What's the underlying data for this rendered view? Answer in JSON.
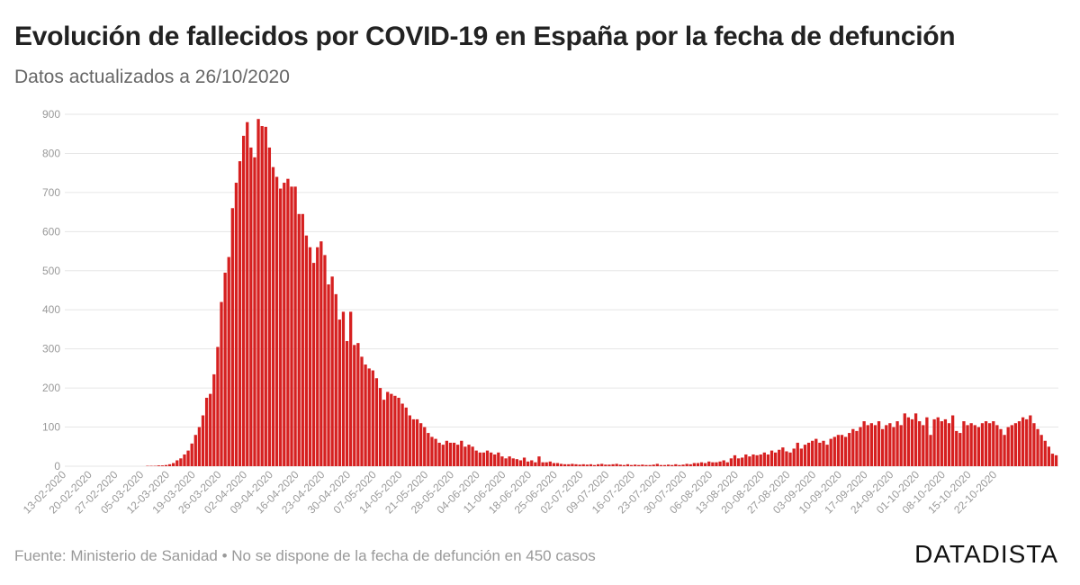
{
  "header": {
    "title": "Evolución de fallecidos por COVID-19 en España por la fecha de defunción",
    "subtitle": "Datos actualizados a 26/10/2020"
  },
  "footer": {
    "source": "Fuente: Ministerio de Sanidad • No se dispone de la fecha de defunción en 450 casos",
    "brand": "DATADISTA"
  },
  "colors": {
    "bar": "#d62020",
    "grid": "#e6e6e6",
    "tick": "#999999"
  },
  "chart_data": {
    "type": "bar",
    "title": "Evolución de fallecidos por COVID-19 en España por la fecha de defunción",
    "subtitle": "Datos actualizados a 26/10/2020",
    "xlabel": "",
    "ylabel": "",
    "ylim": [
      0,
      900
    ],
    "yticks": [
      0,
      100,
      200,
      300,
      400,
      500,
      600,
      700,
      800,
      900
    ],
    "grid": true,
    "start_date": "13-02-2020",
    "end_date": "25-10-2020",
    "xtick_labels": [
      "13-02-2020",
      "20-02-2020",
      "27-02-2020",
      "05-03-2020",
      "12-03-2020",
      "19-03-2020",
      "26-03-2020",
      "02-04-2020",
      "09-04-2020",
      "16-04-2020",
      "23-04-2020",
      "30-04-2020",
      "07-05-2020",
      "14-05-2020",
      "21-05-2020",
      "28-05-2020",
      "04-06-2020",
      "11-06-2020",
      "18-06-2020",
      "25-06-2020",
      "02-07-2020",
      "09-07-2020",
      "16-07-2020",
      "23-07-2020",
      "30-07-2020",
      "06-08-2020",
      "13-08-2020",
      "20-08-2020",
      "27-08-2020",
      "03-09-2020",
      "10-09-2020",
      "17-09-2020",
      "24-09-2020",
      "01-10-2020",
      "08-10-2020",
      "15-10-2020",
      "22-10-2020"
    ],
    "series": [
      {
        "name": "Fallecidos",
        "values": [
          0,
          0,
          0,
          0,
          0,
          0,
          0,
          0,
          0,
          0,
          0,
          0,
          0,
          0,
          0,
          0,
          0,
          0,
          0,
          0,
          0,
          0,
          1,
          1,
          1,
          2,
          2,
          3,
          5,
          8,
          15,
          20,
          30,
          40,
          58,
          80,
          100,
          130,
          175,
          185,
          235,
          305,
          420,
          495,
          535,
          660,
          725,
          780,
          845,
          880,
          815,
          790,
          888,
          870,
          868,
          815,
          765,
          740,
          710,
          725,
          735,
          715,
          715,
          645,
          645,
          590,
          560,
          520,
          560,
          575,
          540,
          465,
          485,
          440,
          375,
          395,
          320,
          395,
          310,
          315,
          280,
          260,
          250,
          245,
          225,
          200,
          170,
          190,
          185,
          180,
          175,
          160,
          150,
          130,
          120,
          120,
          110,
          100,
          85,
          75,
          70,
          60,
          55,
          65,
          60,
          60,
          55,
          65,
          50,
          55,
          50,
          40,
          35,
          35,
          40,
          35,
          30,
          35,
          25,
          20,
          25,
          20,
          18,
          15,
          22,
          12,
          15,
          10,
          25,
          10,
          10,
          12,
          8,
          8,
          6,
          5,
          5,
          6,
          5,
          4,
          5,
          4,
          5,
          3,
          5,
          6,
          4,
          4,
          5,
          6,
          4,
          3,
          5,
          3,
          4,
          3,
          4,
          3,
          3,
          4,
          6,
          3,
          3,
          4,
          3,
          5,
          3,
          4,
          6,
          5,
          8,
          8,
          10,
          8,
          12,
          10,
          10,
          12,
          15,
          10,
          20,
          28,
          20,
          22,
          30,
          25,
          30,
          28,
          30,
          35,
          30,
          40,
          35,
          42,
          48,
          38,
          35,
          45,
          60,
          45,
          55,
          60,
          65,
          70,
          60,
          65,
          55,
          70,
          75,
          80,
          80,
          75,
          85,
          95,
          90,
          100,
          115,
          105,
          110,
          105,
          115,
          95,
          105,
          110,
          100,
          115,
          105,
          135,
          125,
          120,
          135,
          115,
          105,
          125,
          80,
          120,
          125,
          115,
          120,
          110,
          130,
          90,
          85,
          115,
          105,
          110,
          105,
          100,
          110,
          115,
          110,
          115,
          105,
          95,
          80,
          100,
          105,
          110,
          115,
          125,
          120,
          130,
          110,
          95,
          80,
          65,
          50,
          32,
          28
        ]
      }
    ]
  }
}
